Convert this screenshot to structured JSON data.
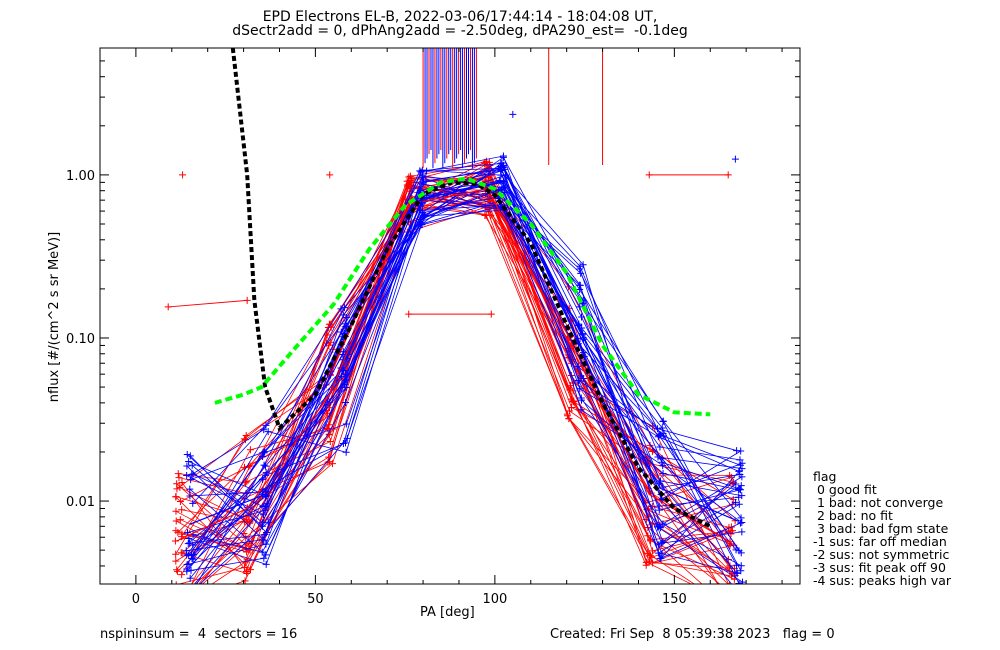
{
  "title_line1": "EPD Electrons EL-B, 2022-03-06/17:44:14 - 18:04:08 UT,",
  "title_line2": "dSectr2add = 0, dPhAng2add = -2.50deg, dPA290_est=  -0.1deg",
  "footer_left": "nspininsum =  4  sectors = 16",
  "footer_right": "Created: Fri Sep  8 05:39:38 2023   flag = 0",
  "legend": {
    "title": "flag",
    "items": [
      " 0 good fit",
      " 1 bad: not converge",
      " 2 bad: no fit",
      " 3 bad: bad fgm state",
      "-1 sus: far off median",
      "-2 sus: not symmetric",
      "-3 sus: fit peak off 90",
      "-4 sus: peaks high var"
    ]
  },
  "colors": {
    "series_a": "#ff0000",
    "series_b": "#0000ff",
    "fit": "#000000",
    "median": "#00ff00"
  },
  "chart_data": {
    "type": "line",
    "xlabel": "PA [deg]",
    "ylabel": "nflux [#/(cm^2 s sr MeV)]",
    "x_scale": "linear",
    "y_scale": "log",
    "xlim": [
      -10,
      185
    ],
    "ylim": [
      0.0031,
      6.0
    ],
    "x_ticks": [
      0,
      50,
      100,
      150
    ],
    "x_tick_labels": [
      "0",
      "50",
      "100",
      "150"
    ],
    "y_ticks": [
      0.01,
      0.1,
      1.0
    ],
    "y_tick_labels": [
      "0.01",
      "0.10",
      "1.00"
    ],
    "grid": false,
    "pa_bins": [
      12,
      20,
      31,
      40,
      54,
      59,
      76,
      81,
      98,
      103,
      118,
      126,
      142,
      146,
      163,
      169
    ],
    "series": [
      {
        "name": "",
        "color": "red",
        "x": [
          12,
          31,
          54,
          76,
          98,
          121,
          143,
          166
        ],
        "y": [
          0.0058,
          0.009,
          0.045,
          0.66,
          0.82,
          0.09,
          0.011,
          0.0055
        ]
      },
      {
        "name": "",
        "color": "blue",
        "x": [
          15,
          36,
          58,
          80,
          102,
          124,
          146,
          168
        ],
        "y": [
          0.0072,
          0.011,
          0.055,
          0.72,
          0.9,
          0.1,
          0.012,
          0.0075
        ]
      },
      {
        "name": "",
        "color": "black",
        "style": "dashed",
        "x": [
          27,
          31,
          33,
          36,
          40,
          50,
          60,
          70,
          80,
          88,
          95,
          100,
          110,
          120,
          130,
          140,
          150,
          160
        ],
        "y": [
          6.0,
          1.0,
          0.17,
          0.05,
          0.028,
          0.045,
          0.12,
          0.35,
          0.76,
          0.9,
          0.88,
          0.75,
          0.38,
          0.12,
          0.04,
          0.016,
          0.009,
          0.007
        ]
      },
      {
        "name": "",
        "color": "green",
        "style": "dashed",
        "x": [
          22,
          30,
          35,
          45,
          55,
          65,
          75,
          85,
          92,
          100,
          110,
          120,
          130,
          140,
          150,
          160
        ],
        "y": [
          0.04,
          0.045,
          0.05,
          0.09,
          0.16,
          0.35,
          0.65,
          0.9,
          0.95,
          0.82,
          0.5,
          0.25,
          0.09,
          0.045,
          0.035,
          0.034
        ]
      }
    ],
    "outliers": [
      {
        "color": "red",
        "x": 13,
        "y": 1.0
      },
      {
        "color": "red",
        "x": 54,
        "y": 1.0
      },
      {
        "color": "red",
        "x": 143,
        "y": 1.0
      },
      {
        "color": "red",
        "x": 165,
        "y": 1.0
      },
      {
        "color": "blue",
        "x": 167,
        "y": 1.25
      },
      {
        "color": "red",
        "x": 9,
        "y": 0.155
      },
      {
        "color": "red",
        "x": 31,
        "y": 0.17
      },
      {
        "color": "red",
        "x": 76,
        "y": 0.14
      },
      {
        "color": "red",
        "x": 99,
        "y": 0.14
      },
      {
        "color": "blue",
        "x": 105,
        "y": 2.35
      }
    ]
  }
}
